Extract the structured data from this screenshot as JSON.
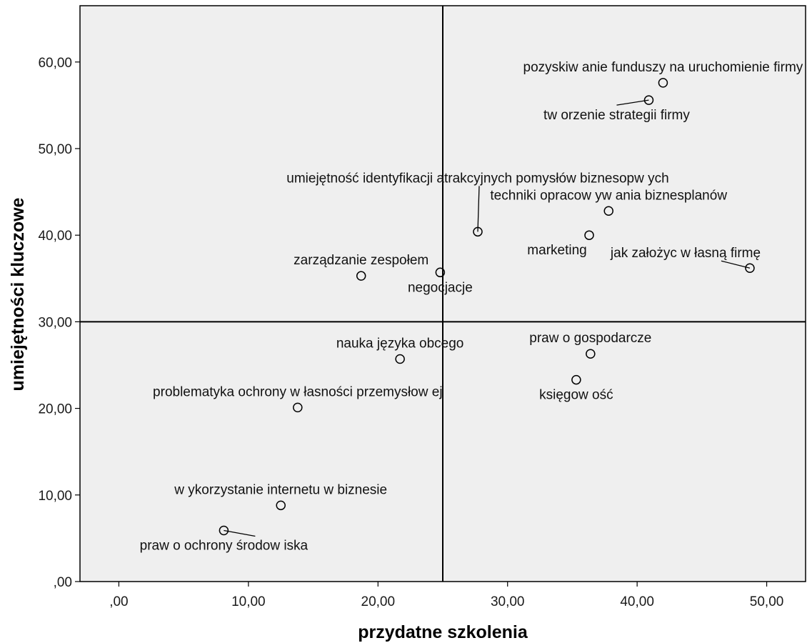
{
  "chart_data": {
    "type": "scatter",
    "xlabel": "przydatne szkolenia",
    "ylabel": "umiejętności kluczowe",
    "xlim": [
      -3.0,
      53.0
    ],
    "ylim": [
      0,
      66.5
    ],
    "x_ticks": [
      0,
      10,
      20,
      30,
      40,
      50
    ],
    "x_tick_labels": [
      ",00",
      "10,00",
      "20,00",
      "30,00",
      "40,00",
      "50,00"
    ],
    "y_ticks": [
      0,
      10,
      20,
      30,
      40,
      50,
      60
    ],
    "y_tick_labels": [
      ",00",
      "10,00",
      "20,00",
      "30,00",
      "40,00",
      "50,00",
      "60,00"
    ],
    "reference_lines": {
      "x": 25.0,
      "y": 30.0
    },
    "grid": false,
    "colors": {
      "plot_background": "#efefef",
      "marker_stroke": "#000000",
      "reference_line": "#000000"
    },
    "points": [
      {
        "x": 42.0,
        "y": 57.6,
        "label": "pozyskiw anie funduszy na uruchomienie firmy",
        "pos": "above"
      },
      {
        "x": 40.9,
        "y": 55.6,
        "label": "tw orzenie strategii firmy",
        "pos": "below-left",
        "leader": true
      },
      {
        "x": 27.7,
        "y": 40.4,
        "label": "umiejętność identyfikacji atrakcyjnych pomysłów  biznesopw ych",
        "pos": "far-above",
        "leader": true
      },
      {
        "x": 37.8,
        "y": 42.8,
        "label": "techniki opracow yw ania biznesplanów",
        "pos": "above"
      },
      {
        "x": 36.3,
        "y": 40.0,
        "label": "marketing",
        "pos": "below-left"
      },
      {
        "x": 48.7,
        "y": 36.2,
        "label": "jak założyc w łasną firmę",
        "pos": "above-left",
        "leader": true
      },
      {
        "x": 18.7,
        "y": 35.3,
        "label": "zarządzanie zespołem",
        "pos": "above"
      },
      {
        "x": 24.8,
        "y": 35.7,
        "label": "negocjacje",
        "pos": "below"
      },
      {
        "x": 21.7,
        "y": 25.7,
        "label": "nauka języka obcego",
        "pos": "above"
      },
      {
        "x": 36.4,
        "y": 26.3,
        "label": "praw o gospodarcze",
        "pos": "above"
      },
      {
        "x": 35.3,
        "y": 23.3,
        "label": "księgow ość",
        "pos": "below"
      },
      {
        "x": 13.8,
        "y": 20.1,
        "label": "problematyka ochrony w łasności przemysłow ej",
        "pos": "above"
      },
      {
        "x": 12.5,
        "y": 8.8,
        "label": "w ykorzystanie internetu w  biznesie",
        "pos": "above"
      },
      {
        "x": 8.1,
        "y": 5.9,
        "label": "praw o ochrony środow iska",
        "pos": "below",
        "leader": true
      }
    ]
  }
}
